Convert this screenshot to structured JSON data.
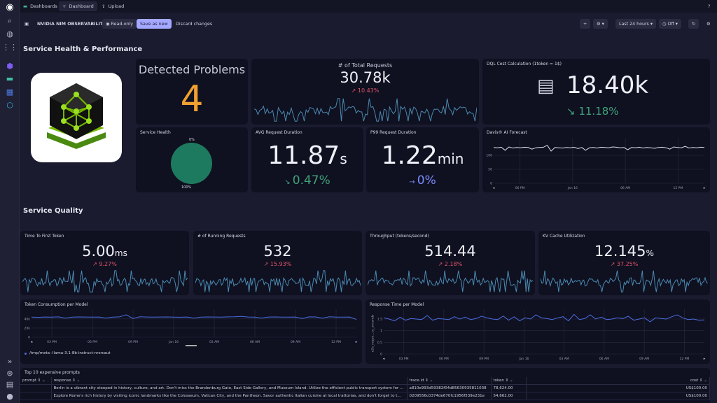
{
  "topbar": {
    "tabs": [
      {
        "label": "Dashboards",
        "icon": "dashboards-icon"
      },
      {
        "label": "Dashboard",
        "icon": "plus-icon"
      },
      {
        "label": "Upload",
        "icon": "upload-icon"
      }
    ],
    "help_icon": "help-icon"
  },
  "toolbar": {
    "title": "NVIDIA NIM OBSERVABILITY",
    "readonly_label": "Read-only",
    "save_as_new": "Save as new",
    "discard": "Discard changes",
    "timeframe": "Last 24 hours",
    "refresh": "Off",
    "accent": "#a5a8ff"
  },
  "sections": {
    "health": "Service Health & Performance",
    "quality": "Service Quality"
  },
  "cards": {
    "problems": {
      "title": "Detected Problems",
      "value": "4",
      "color": "#f0a030"
    },
    "total_requests": {
      "title": "# of Total Requests",
      "value": "30.78k",
      "delta": "10.43%",
      "trend": "up-bad"
    },
    "dql_cost": {
      "title": "DQL Cost Calculation (1token = 1$)",
      "value": "18.40k",
      "delta": "11.18%",
      "trend": "down-good"
    },
    "service_health": {
      "title": "Service Health",
      "top_label": "0%",
      "bottom_label": "100%",
      "healthy_pct": 100,
      "color": "#1e7a5e"
    },
    "avg_duration": {
      "title": "AVG Request Duration",
      "value": "11.87",
      "unit": "s",
      "delta": "0.47%",
      "trend": "down-good"
    },
    "p99_duration": {
      "title": "P99 Request Duration",
      "value": "1.22",
      "unit": "min",
      "delta": "0%",
      "trend": "flat"
    },
    "ttft": {
      "title": "Time To First Token",
      "value": "5.00",
      "unit": "ms",
      "delta": "9.27%",
      "trend": "up-bad"
    },
    "running": {
      "title": "# of Running Requests",
      "value": "532",
      "unit": "",
      "delta": "15.93%",
      "trend": "up-bad"
    },
    "throughput": {
      "title": "Throughput (tokens/second)",
      "value": "514.44",
      "unit": "",
      "delta": "2.18%",
      "trend": "up-bad"
    },
    "kv_cache": {
      "title": "KV Cache Utilization",
      "value": "12.145",
      "unit": "%",
      "delta": "37.25%",
      "trend": "up-bad"
    }
  },
  "chart_data": [
    {
      "id": "davis",
      "type": "line",
      "title": "Davis® AI Forecast",
      "yticks": [
        "0",
        "50",
        "100"
      ],
      "ylim": [
        0,
        150
      ],
      "xticks": [
        "06 PM",
        "Jan 16",
        "06 AM",
        "12 PM"
      ],
      "color": "#e0e0ea",
      "values": [
        128,
        127,
        129,
        118,
        130,
        126,
        128,
        127,
        129,
        128,
        122,
        127,
        128,
        129,
        136,
        115,
        128,
        127,
        126,
        128,
        127,
        129,
        124,
        128,
        118,
        127,
        128,
        126,
        129,
        128,
        127,
        130,
        129,
        127,
        128,
        120,
        128,
        127,
        129,
        126,
        128,
        127,
        125,
        128,
        129,
        127,
        122,
        130,
        128,
        127,
        132,
        126,
        128,
        127,
        129,
        128
      ]
    },
    {
      "id": "token",
      "type": "line",
      "title": "Token Consumption per Model",
      "yticks": [
        "0",
        "20k",
        "40k"
      ],
      "ylim": [
        0,
        55000
      ],
      "xticks": [
        "03 PM",
        "06 PM",
        "09 PM",
        "Jan 16",
        "03 AM",
        "06 AM",
        "09 AM",
        "12 PM"
      ],
      "color": "#4a6ee0",
      "legend": [
        "/tmp/meta--llama-3.1-8b-instruct-nrsrcaut"
      ],
      "values": [
        44000,
        43500,
        44200,
        43800,
        44500,
        41500,
        44000,
        44300,
        44100,
        43900,
        44200,
        41800,
        44000,
        44500,
        49000,
        41000,
        44600,
        44200,
        43800,
        44100,
        44300,
        44000,
        43700,
        44200,
        41500,
        44000,
        44300,
        44100,
        43900,
        44400,
        44800,
        45500,
        44200,
        43900,
        41800,
        44100,
        44300,
        44000,
        43800,
        44200,
        41000,
        44500,
        44300,
        41500,
        44800,
        44000,
        43900,
        44200,
        39000
      ]
    },
    {
      "id": "response",
      "type": "line",
      "title": "Response Time per Model",
      "ylabel": "e2e_reque...cy_seconds",
      "yticks": [
        "0",
        "0.5",
        "1",
        "1.5"
      ],
      "ylim": [
        0,
        1.8
      ],
      "xticks": [
        "03 PM",
        "06 PM",
        "09 PM",
        "Jan 16",
        "03 AM",
        "06 AM",
        "09 AM",
        "12 PM"
      ],
      "color": "#4a6ee0",
      "values": [
        1.55,
        1.5,
        1.42,
        1.58,
        1.45,
        1.52,
        1.5,
        1.48,
        1.65,
        1.45,
        1.52,
        1.5,
        1.48,
        1.6,
        1.5,
        1.58,
        1.48,
        1.52,
        1.62,
        1.55,
        1.5,
        1.48,
        1.63,
        1.45,
        1.6,
        1.42,
        1.55,
        1.5,
        1.68,
        1.55,
        1.52,
        1.48,
        1.55,
        1.6,
        1.42,
        1.7,
        1.48,
        1.52,
        1.68,
        1.5,
        1.58,
        1.48,
        1.5,
        1.55,
        1.52,
        1.62,
        1.45,
        1.5,
        1.55,
        1.38,
        1.55,
        1.52,
        1.5,
        1.6,
        1.68,
        1.55,
        1.48,
        1.5,
        1.45,
        1.46
      ]
    }
  ],
  "table": {
    "title": "Top 10 expensive prompts",
    "columns": [
      "prompt",
      "response",
      "trace.id",
      "token",
      "cost"
    ],
    "rows": [
      [
        "",
        "Berlin is a vibrant city steeped in history, culture, and art. Don't miss the Brandenburg Gate, East Side Gallery, and Museum Island. Utilize the efficient public transport system for ...",
        "a810e993d59382f04d85630935811038",
        "78,624.00",
        "US$100.00"
      ],
      [
        "",
        "Explore Rome's rich history by visiting iconic landmarks like the Colosseum, Vatican City, and the Pantheon. Savor authentic Italian cuisine at local trattorias, and don't forget to t...",
        "0209556c0374de670fc1956f539e231e",
        "54,662.00",
        "US$100.00"
      ]
    ]
  }
}
